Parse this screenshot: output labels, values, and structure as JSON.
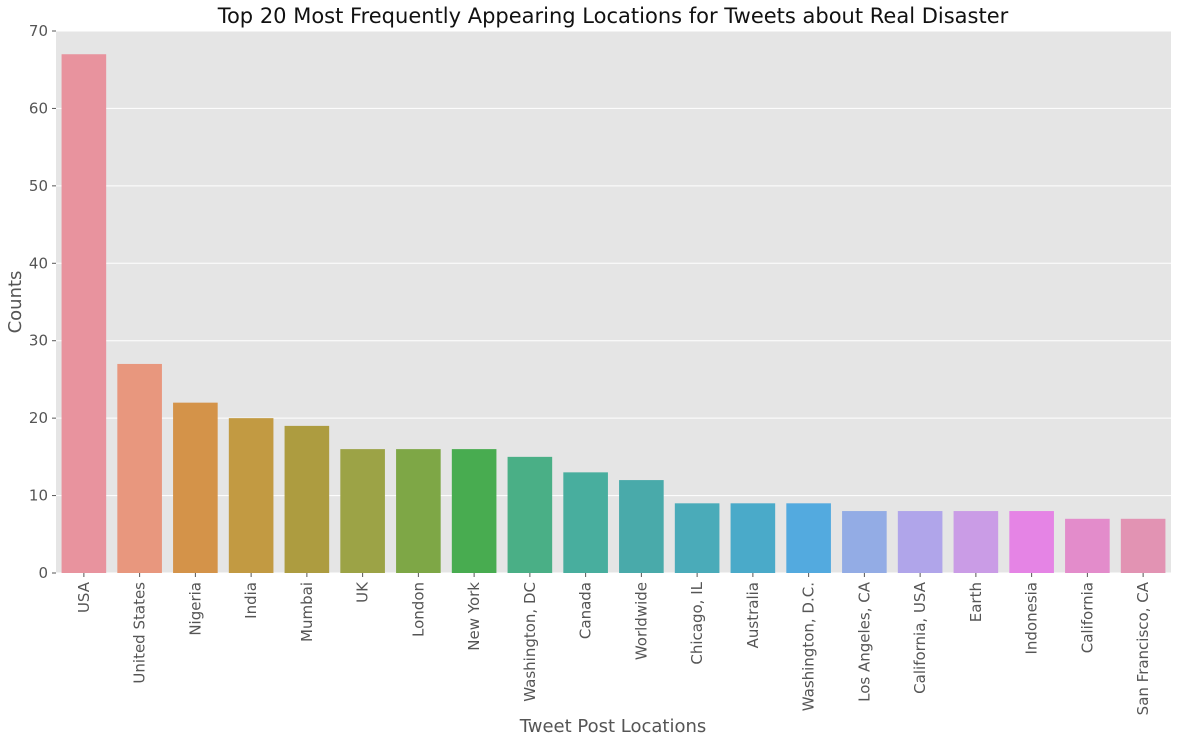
{
  "chart_data": {
    "type": "bar",
    "title": "Top 20 Most Frequently Appearing Locations for Tweets about Real Disaster",
    "xlabel": "Tweet Post Locations",
    "ylabel": "Counts",
    "categories": [
      "USA",
      "United States",
      "Nigeria",
      "India",
      "Mumbai",
      "UK",
      "London",
      "New York",
      "Washington, DC",
      "Canada",
      "Worldwide",
      "Chicago, IL",
      "Australia",
      "Washington, D.C.",
      "Los Angeles, CA",
      "California, USA",
      "Earth",
      "Indonesia",
      "California",
      "San Francisco, CA"
    ],
    "values": [
      67,
      27,
      22,
      20,
      19,
      16,
      16,
      16,
      15,
      13,
      12,
      9,
      9,
      9,
      8,
      8,
      8,
      8,
      7,
      7
    ],
    "colors": [
      "#e8939e",
      "#e8977e",
      "#d49349",
      "#c29a42",
      "#ad9c40",
      "#9ca346",
      "#7ea746",
      "#48ac50",
      "#4aaf86",
      "#48ae9e",
      "#49aaaa",
      "#4aabb9",
      "#4aaac9",
      "#53aadf",
      "#93ace5",
      "#b0a5ea",
      "#ca9ce6",
      "#e584e5",
      "#e38ccb",
      "#e293b3"
    ],
    "ylim": [
      0,
      70
    ],
    "yticks": [
      0,
      10,
      20,
      30,
      40,
      50,
      60,
      70
    ],
    "grid": true,
    "style": "ggplot",
    "background_color": "#e5e5e5",
    "grid_color": "#ffffff"
  }
}
